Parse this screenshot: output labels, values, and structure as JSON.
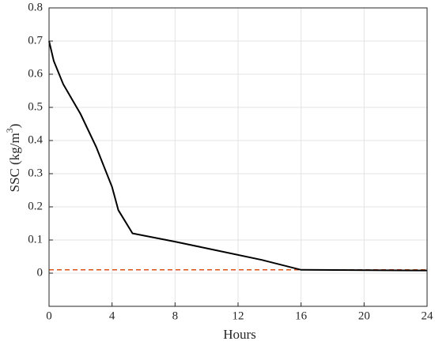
{
  "chart_data": {
    "type": "line",
    "xlabel": "Hours",
    "ylabel": {
      "text": "SSC (kg/m",
      "sup": "3",
      "end": ")"
    },
    "series": [
      {
        "color": "#d95319",
        "dash": true,
        "x": [
          0,
          24
        ],
        "values": [
          0.01,
          0.01
        ]
      },
      {
        "color": "#000000",
        "dash": false,
        "x": [
          0,
          0.3,
          0.9,
          2,
          3,
          4,
          4.4,
          5.3,
          8,
          10,
          13.5,
          16,
          24
        ],
        "values": [
          0.7,
          0.64,
          0.57,
          0.48,
          0.38,
          0.26,
          0.19,
          0.12,
          0.095,
          0.075,
          0.04,
          0.01,
          0.008
        ]
      }
    ],
    "xlim": [
      0,
      24
    ],
    "xticks": [
      0,
      4,
      8,
      12,
      16,
      20,
      24
    ],
    "ylim": [
      -0.1,
      0.8
    ],
    "yticks": [
      0,
      0.1,
      0.2,
      0.3,
      0.4,
      0.5,
      0.6,
      0.7,
      0.8
    ],
    "grid": true
  }
}
